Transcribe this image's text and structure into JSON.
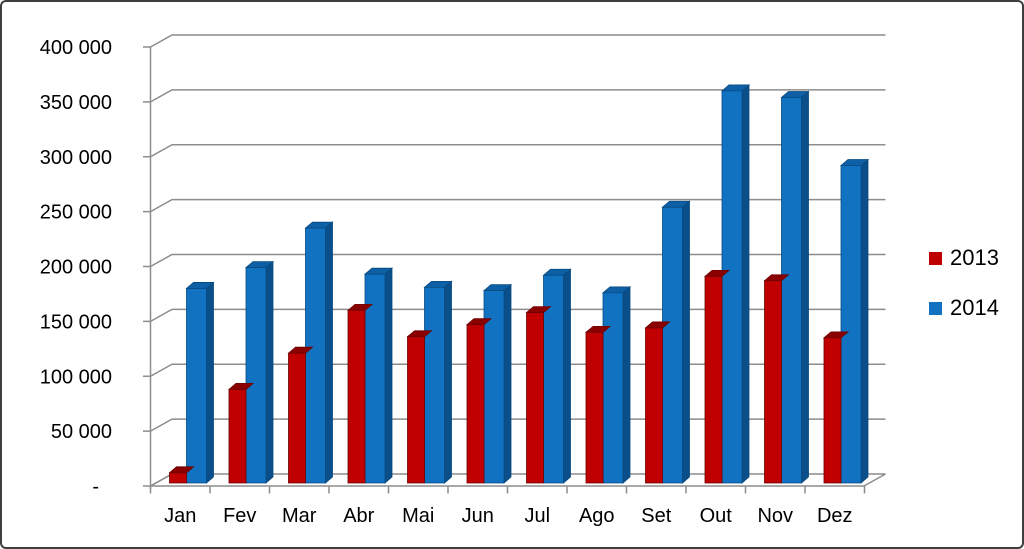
{
  "chart_data": {
    "type": "bar",
    "style": "3d-clustered-column",
    "title": "",
    "xlabel": "",
    "ylabel": "",
    "categories": [
      "Jan",
      "Fev",
      "Mar",
      "Abr",
      "Mai",
      "Jun",
      "Jul",
      "Ago",
      "Set",
      "Out",
      "Nov",
      "Dez"
    ],
    "series": [
      {
        "name": "2013",
        "values": [
          12000,
          88000,
          121000,
          160000,
          136000,
          147000,
          158000,
          140000,
          144000,
          191000,
          187000,
          135000
        ]
      },
      {
        "name": "2014",
        "values": [
          180000,
          199000,
          235000,
          193000,
          181000,
          178000,
          192000,
          176000,
          254000,
          360000,
          354000,
          292000
        ]
      }
    ],
    "ylim": [
      0,
      400000
    ],
    "y_step": 50000,
    "y_tick_labels": [
      "-",
      "50 000",
      "100 000",
      "150 000",
      "200 000",
      "250 000",
      "300 000",
      "350 000",
      "400 000"
    ],
    "grid": true,
    "legend_position": "right-middle",
    "colors": {
      "red_front": "#c00000",
      "red_top": "#8a0000",
      "red_side": "#7a0000",
      "red_edge": "#6e0000",
      "blue_front": "#1172c2",
      "blue_top": "#0d5fa6",
      "blue_side": "#0a4e8a",
      "blue_edge": "#084a80",
      "grid_line": "#8c8c8c",
      "axis_line": "#8c8c8c",
      "text": "#000000"
    }
  }
}
